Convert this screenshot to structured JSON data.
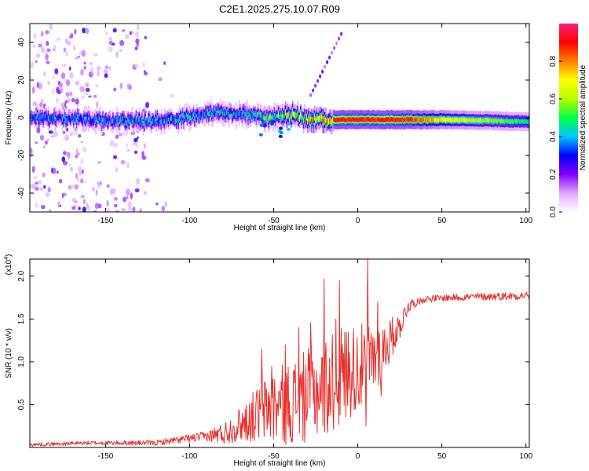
{
  "title": "C2E1.2025.275.10.07.R09",
  "chart_data": [
    {
      "type": "heatmap",
      "name": "spectrogram",
      "xlabel": "Height of straight line (km)",
      "ylabel": "Frequency (Hz)",
      "xlim": [
        -195,
        102
      ],
      "ylim": [
        -50,
        50
      ],
      "xticks": [
        -150,
        -100,
        -50,
        0,
        50,
        100
      ],
      "yticks": [
        -40,
        -20,
        0,
        20,
        40
      ],
      "xtick_labels": [
        "-150",
        "-100",
        "-50",
        "0",
        "50",
        "100"
      ],
      "ytick_labels": [
        "-40",
        "-20",
        "0",
        "20",
        "40"
      ],
      "band_center_hz": [
        {
          "x": -195,
          "f": 0
        },
        {
          "x": -160,
          "f": -1
        },
        {
          "x": -130,
          "f": -2
        },
        {
          "x": -110,
          "f": -1
        },
        {
          "x": -95,
          "f": 1
        },
        {
          "x": -85,
          "f": 3
        },
        {
          "x": -70,
          "f": 2
        },
        {
          "x": -60,
          "f": 1
        },
        {
          "x": -50,
          "f": 0
        },
        {
          "x": -40,
          "f": 2
        },
        {
          "x": -30,
          "f": -1
        },
        {
          "x": -15,
          "f": -1
        },
        {
          "x": 0,
          "f": -1
        },
        {
          "x": 25,
          "f": -1
        },
        {
          "x": 50,
          "f": -1
        },
        {
          "x": 100,
          "f": -2
        }
      ],
      "band_peak_amplitude": [
        {
          "x": -195,
          "a": 0.4
        },
        {
          "x": -100,
          "a": 0.45
        },
        {
          "x": -60,
          "a": 0.5
        },
        {
          "x": -15,
          "a": 0.95
        },
        {
          "x": 25,
          "a": 0.95
        },
        {
          "x": 55,
          "a": 0.7
        },
        {
          "x": 102,
          "a": 0.5
        }
      ]
    },
    {
      "type": "colorbar",
      "label": "Normalized spectral amplitude",
      "range": [
        0,
        1
      ],
      "ticks": [
        0.0,
        0.2,
        0.4,
        0.6,
        0.8
      ],
      "tick_labels": [
        "0.0",
        "0.2",
        "0.4",
        "0.6",
        "0.8"
      ],
      "colors": [
        "#ffffff",
        "#e0a8ff",
        "#8000ff",
        "#0000ff",
        "#00c8ff",
        "#00ff40",
        "#b8ff00",
        "#ffff00",
        "#ff8000",
        "#ff0000",
        "#ff2080"
      ]
    },
    {
      "type": "line",
      "name": "snr",
      "xlabel": "Height of straight line (km)",
      "ylabel": "SNR (10 * v/v)",
      "scale_label_base": "(x10",
      "scale_label_exp": "4",
      "scale_label_end": ")",
      "xlim": [
        -195,
        102
      ],
      "ylim": [
        0,
        2.2
      ],
      "xticks": [
        -150,
        -100,
        -50,
        0,
        50,
        100
      ],
      "yticks": [
        0.5,
        1.0,
        1.5,
        2.0
      ],
      "xtick_labels": [
        "-150",
        "-100",
        "-50",
        "0",
        "50",
        "100"
      ],
      "ytick_labels": [
        "0.5",
        "1.0",
        "1.5",
        "2.0"
      ],
      "color": "#e8302c",
      "trend": [
        {
          "x": -195,
          "y": 0.03
        },
        {
          "x": -160,
          "y": 0.05
        },
        {
          "x": -120,
          "y": 0.05
        },
        {
          "x": -100,
          "y": 0.1
        },
        {
          "x": -80,
          "y": 0.15
        },
        {
          "x": -65,
          "y": 0.3
        },
        {
          "x": -55,
          "y": 0.4
        },
        {
          "x": -45,
          "y": 0.45
        },
        {
          "x": -35,
          "y": 0.5
        },
        {
          "x": -25,
          "y": 0.6
        },
        {
          "x": -15,
          "y": 0.7
        },
        {
          "x": -5,
          "y": 0.85
        },
        {
          "x": 5,
          "y": 0.9
        },
        {
          "x": 15,
          "y": 1.1
        },
        {
          "x": 25,
          "y": 1.4
        },
        {
          "x": 30,
          "y": 1.65
        },
        {
          "x": 40,
          "y": 1.73
        },
        {
          "x": 60,
          "y": 1.75
        },
        {
          "x": 102,
          "y": 1.77
        }
      ],
      "noise": [
        {
          "x": -195,
          "y": 0.02
        },
        {
          "x": -120,
          "y": 0.03
        },
        {
          "x": -90,
          "y": 0.06
        },
        {
          "x": -70,
          "y": 0.2
        },
        {
          "x": -50,
          "y": 0.45
        },
        {
          "x": -30,
          "y": 0.55
        },
        {
          "x": -10,
          "y": 0.6
        },
        {
          "x": 10,
          "y": 0.45
        },
        {
          "x": 25,
          "y": 0.15
        },
        {
          "x": 35,
          "y": 0.04
        },
        {
          "x": 102,
          "y": 0.05
        }
      ],
      "spikes": [
        {
          "x": -57,
          "y": 1.15
        },
        {
          "x": -51,
          "y": 0.95
        },
        {
          "x": -43,
          "y": 1.2
        },
        {
          "x": -35,
          "y": 1.4
        },
        {
          "x": -28,
          "y": 1.45
        },
        {
          "x": -20,
          "y": 1.97
        },
        {
          "x": -13,
          "y": 1.5
        },
        {
          "x": -11,
          "y": 1.95
        },
        {
          "x": 6,
          "y": 2.2
        },
        {
          "x": 5,
          "y": 0.25
        },
        {
          "x": 12,
          "y": 1.7
        },
        {
          "x": 14,
          "y": 0.6
        }
      ]
    }
  ]
}
